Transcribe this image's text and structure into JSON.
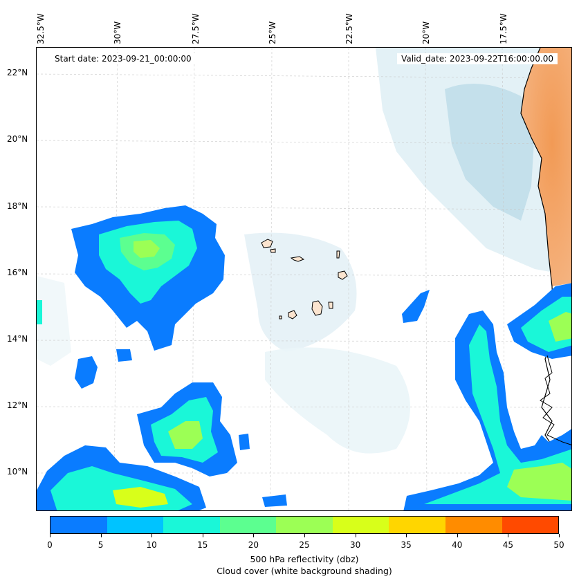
{
  "lon_labels": [
    "32.5°W",
    "30°W",
    "27.5°W",
    "25°W",
    "22.5°W",
    "20°W",
    "17.5°W"
  ],
  "lat_labels": [
    "22°N",
    "20°N",
    "18°N",
    "16°N",
    "14°N",
    "12°N",
    "10°N"
  ],
  "start_date": "Start date: 2023-09-21_00:00:00",
  "valid_date": "Valid_date: 2023-09-22T16:00:00.00",
  "colorbar": {
    "ticks": [
      "0",
      "5",
      "10",
      "15",
      "20",
      "25",
      "30",
      "35",
      "40",
      "45",
      "50"
    ],
    "colors": [
      "#0a7cff",
      "#00c3ff",
      "#1af7d8",
      "#5cff90",
      "#9cff55",
      "#d8ff1a",
      "#ffd600",
      "#ff8c00",
      "#ff4a00"
    ],
    "label_line1": "500 hPa reflectivity (dbz)",
    "label_line2": "Cloud cover (white background shading)"
  },
  "colors": {
    "land_dust": "#f3a868",
    "cloud_light": "#dceef4",
    "cloud_mid": "#b9dbe8",
    "island": "#fbe4cf"
  }
}
